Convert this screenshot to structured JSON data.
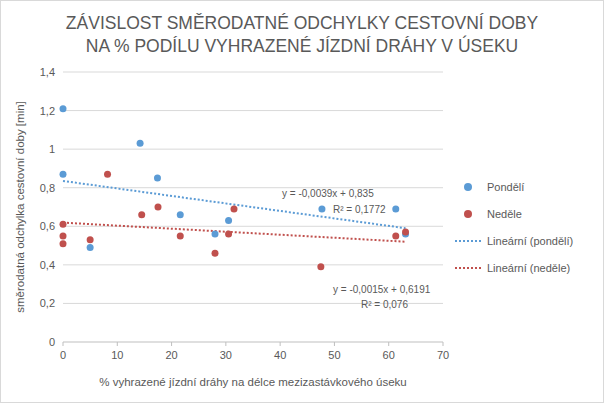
{
  "chart_data": {
    "type": "scatter",
    "title": "ZÁVISLOST SMĚRODATNÉ ODCHYLKY CESTOVNÍ DOBY\nNA % PODÍLU VYHRAZENÉ JÍZDNÍ DRÁHY V ÚSEKU",
    "x_label": "% vyhrazené jízdní dráhy na délce mezizastávkového úseku",
    "y_label": "směrodatná odchylka cestovní doby [min]",
    "xlim": [
      0,
      70
    ],
    "xticks": [
      0,
      10,
      20,
      30,
      40,
      50,
      60,
      70
    ],
    "ylim": [
      0,
      1.4
    ],
    "yticks": [
      0,
      {
        "value": 0.2,
        "label": "0,2"
      },
      {
        "value": 0.4,
        "label": "0,4"
      },
      {
        "value": 0.6,
        "label": "0,6"
      },
      {
        "value": 0.8,
        "label": "0,8"
      },
      1,
      {
        "value": 1.2,
        "label": "1,2"
      },
      {
        "value": 1.4,
        "label": "1,4"
      }
    ],
    "grid": true,
    "legend": "right",
    "series": [
      {
        "name": "Pondělí",
        "type": "scatter",
        "marker": "circle",
        "color": "#5b9bd5",
        "x": [
          0,
          0,
          5,
          14.2,
          17.4,
          21.6,
          28,
          30.5,
          47.7,
          61.3,
          63.1
        ],
        "values": [
          1.21,
          0.87,
          0.49,
          1.03,
          0.85,
          0.66,
          0.56,
          0.63,
          0.69,
          0.69,
          0.56
        ]
      },
      {
        "name": "Neděle",
        "type": "scatter",
        "marker": "circle",
        "color": "#c0504d",
        "x": [
          0,
          0,
          0,
          5,
          8.2,
          14.5,
          17.5,
          21.6,
          28,
          30.5,
          31.5,
          47.5,
          61.3,
          63.1
        ],
        "values": [
          0.61,
          0.55,
          0.51,
          0.53,
          0.87,
          0.66,
          0.7,
          0.55,
          0.46,
          0.56,
          0.69,
          0.39,
          0.55,
          0.57
        ]
      },
      {
        "name": "Lineární (pondělí)",
        "type": "line",
        "line_style": "dotted",
        "color": "#5b9bd5",
        "x": [
          0,
          63.1
        ],
        "values": [
          0.835,
          0.59
        ]
      },
      {
        "name": "Lineární (neděle)",
        "type": "line",
        "line_style": "dotted",
        "color": "#c0504d",
        "x": [
          0,
          63.1
        ],
        "values": [
          0.619,
          0.52
        ]
      }
    ],
    "annotations": [
      "y = -0,0039x + 0,835",
      "R² = 0,1772",
      "y = -0,0015x + 0,6191",
      "R² = 0,076"
    ]
  }
}
